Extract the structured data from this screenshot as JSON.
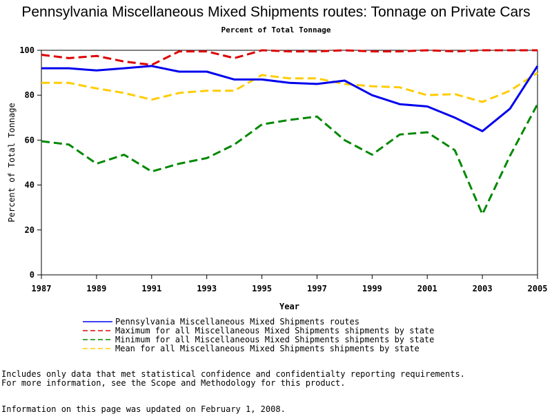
{
  "chart_data": {
    "type": "line",
    "title": "Pennsylvania Miscellaneous Mixed Shipments routes: Tonnage on Private Cars",
    "subtitle": "Percent of Total Tonnage",
    "xlabel": "Year",
    "ylabel": "Percent of Total Tonnage",
    "xlim": [
      1987,
      2005
    ],
    "ylim": [
      0,
      100
    ],
    "x_ticks": [
      "1987",
      "1989",
      "1991",
      "1993",
      "1995",
      "1997",
      "1999",
      "2001",
      "2003",
      "2005"
    ],
    "y_ticks": [
      "0",
      "20",
      "40",
      "60",
      "80",
      "100"
    ],
    "x": [
      1987,
      1988,
      1989,
      1990,
      1991,
      1992,
      1993,
      1994,
      1995,
      1996,
      1997,
      1998,
      1999,
      2000,
      2001,
      2002,
      2003,
      2004,
      2005
    ],
    "series": [
      {
        "name": "Pennsylvania Miscellaneous Mixed Shipments routes",
        "color": "#0000ee",
        "style": "solid",
        "values": [
          92,
          92,
          91,
          92,
          93,
          90.5,
          90.5,
          87,
          87,
          85.5,
          85,
          86.5,
          80,
          76,
          75,
          70,
          64,
          74,
          93
        ]
      },
      {
        "name": "Maximum for all Miscellaneous Mixed Shipments shipments by state",
        "color": "#dd0000",
        "style": "dashed",
        "values": [
          98,
          96.5,
          97.5,
          95,
          93.5,
          99.5,
          99.5,
          96.5,
          100,
          99.5,
          99.5,
          100,
          99.5,
          99.5,
          100,
          99.5,
          100,
          100,
          100
        ]
      },
      {
        "name": "Minimum for all Miscellaneous Mixed Shipments shipments by state",
        "color": "#008800",
        "style": "dashed",
        "values": [
          59.5,
          58,
          49.5,
          53.5,
          46,
          49.5,
          52,
          58,
          67,
          69,
          70.5,
          60,
          53.5,
          62.5,
          63.5,
          55.5,
          27,
          53,
          76
        ]
      },
      {
        "name": "Mean for all Miscellaneous Mixed Shipments shipments by state",
        "color": "#ffcc00",
        "style": "dashed",
        "values": [
          85.5,
          85.5,
          83,
          81,
          78,
          81,
          82,
          82,
          89,
          87.5,
          87.5,
          85,
          84,
          83.5,
          80,
          80.5,
          77,
          82,
          90
        ]
      }
    ],
    "legend_position": "bottom"
  },
  "notes": [
    "Includes only data that met statistical confidence and confidentialty reporting requirements.",
    "For more information, see the Scope and Methodology for this product.",
    "Information on this page was updated on February 1, 2008."
  ]
}
